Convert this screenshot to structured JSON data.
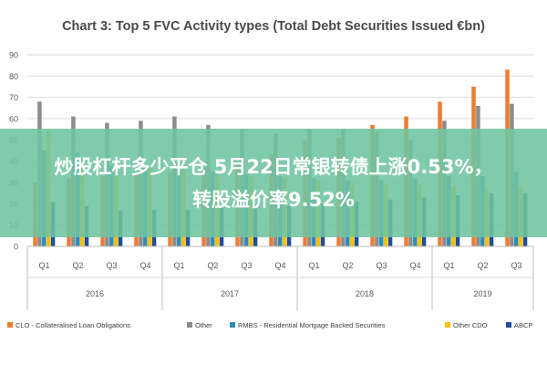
{
  "chart_data": {
    "type": "bar",
    "title": "Chart 3: Top 5 FVC Activity types (Total Debt Securities Issued €bn)",
    "ylim": [
      0,
      90
    ],
    "yticks": [
      0,
      10,
      20,
      30,
      40,
      50,
      60,
      70,
      80,
      90
    ],
    "categories": [
      "Q1",
      "Q2",
      "Q3",
      "Q4",
      "Q1",
      "Q2",
      "Q3",
      "Q4",
      "Q1",
      "Q2",
      "Q3",
      "Q4",
      "Q1",
      "Q2",
      "Q3"
    ],
    "years": [
      {
        "label": "2016",
        "span": 4
      },
      {
        "label": "2017",
        "span": 4
      },
      {
        "label": "2018",
        "span": 4
      },
      {
        "label": "2019",
        "span": 3
      }
    ],
    "series": [
      {
        "name": "CLO - Collateralised Loan Obligations",
        "color": "#ed7d31",
        "values": [
          30,
          32,
          33,
          34,
          35,
          37,
          39,
          43,
          50,
          51,
          57,
          61,
          68,
          75,
          83
        ]
      },
      {
        "name": "Other",
        "color": "#8c8c8c",
        "values": [
          68,
          61,
          58,
          59,
          61,
          57,
          55,
          53,
          55,
          55,
          54,
          50,
          59,
          66,
          67
        ]
      },
      {
        "name": "RMBS - Residential Mortgage Backed Securities",
        "color": "#2e8bb8",
        "values": [
          45,
          44,
          38,
          37,
          36,
          35,
          34,
          33,
          32,
          31,
          31,
          32,
          33,
          33,
          35
        ]
      },
      {
        "name": "Other CDO",
        "color": "#ffc000",
        "values": [
          54,
          41,
          40,
          37,
          36,
          34,
          33,
          32,
          31,
          30,
          29,
          29,
          28,
          27,
          28
        ]
      },
      {
        "name": "ABCP",
        "color": "#1f4e9e",
        "values": [
          21,
          19,
          17,
          17,
          17,
          18,
          19,
          19,
          20,
          21,
          22,
          23,
          24,
          25,
          25
        ]
      }
    ],
    "grid": true,
    "legend": "bottom"
  },
  "overlay": {
    "line1": "炒股杠杆多少平仓 5月22日常银转债上涨0.53%，",
    "line2": "转股溢价率9.52%"
  }
}
